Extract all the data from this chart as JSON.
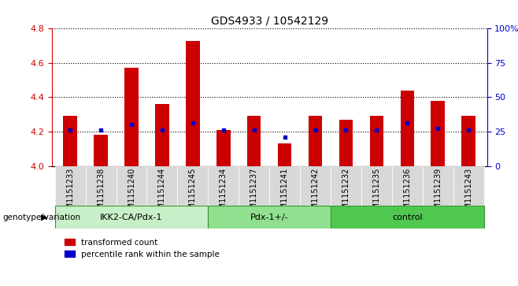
{
  "title": "GDS4933 / 10542129",
  "samples": [
    "GSM1151233",
    "GSM1151238",
    "GSM1151240",
    "GSM1151244",
    "GSM1151245",
    "GSM1151234",
    "GSM1151237",
    "GSM1151241",
    "GSM1151242",
    "GSM1151232",
    "GSM1151235",
    "GSM1151236",
    "GSM1151239",
    "GSM1151243"
  ],
  "red_values": [
    4.29,
    4.18,
    4.57,
    4.36,
    4.73,
    4.21,
    4.29,
    4.13,
    4.29,
    4.27,
    4.29,
    4.44,
    4.38,
    4.29
  ],
  "blue_values": [
    4.21,
    4.21,
    4.24,
    4.21,
    4.25,
    4.21,
    4.21,
    4.17,
    4.21,
    4.21,
    4.21,
    4.25,
    4.22,
    4.21
  ],
  "groups": [
    {
      "label": "IKK2-CA/Pdx-1",
      "start": 0,
      "end": 5,
      "color": "#c8f0c8"
    },
    {
      "label": "Pdx-1+/-",
      "start": 5,
      "end": 9,
      "color": "#90e090"
    },
    {
      "label": "control",
      "start": 9,
      "end": 14,
      "color": "#50c850"
    }
  ],
  "ylim_left": [
    4.0,
    4.8
  ],
  "ylim_right": [
    0,
    100
  ],
  "yticks_left": [
    4.0,
    4.2,
    4.4,
    4.6,
    4.8
  ],
  "yticks_right": [
    0,
    25,
    50,
    75,
    100
  ],
  "bar_color": "#cc0000",
  "dot_color": "#0000cc",
  "background_color": "#ffffff",
  "tick_label_fontsize": 7,
  "title_fontsize": 10,
  "bar_width": 0.45
}
